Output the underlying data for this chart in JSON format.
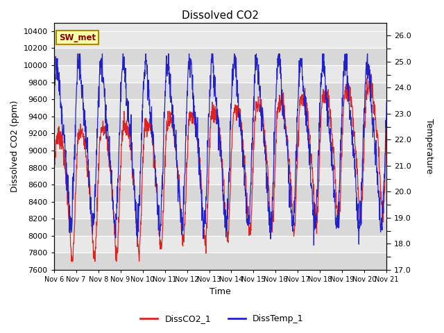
{
  "title": "Dissolved CO2",
  "xlabel": "Time",
  "ylabel_left": "Dissolved CO2 (ppm)",
  "ylabel_right": "Temperature",
  "legend_label": "SW_met",
  "series1_label": "DissCO2_1",
  "series2_label": "DissTemp_1",
  "series1_color": "#dd2222",
  "series2_color": "#2222cc",
  "ylim_left": [
    7600,
    10500
  ],
  "ylim_right": [
    17.0,
    26.5
  ],
  "yticks_left": [
    7600,
    7800,
    8000,
    8200,
    8400,
    8600,
    8800,
    9000,
    9200,
    9400,
    9600,
    9800,
    10000,
    10200,
    10400
  ],
  "yticks_right_major": [
    17.0,
    18.0,
    19.0,
    20.0,
    21.0,
    22.0,
    23.0,
    24.0,
    25.0,
    26.0
  ],
  "yticks_right_minor": [
    17.5,
    18.5,
    19.5,
    20.5,
    21.5,
    22.5,
    23.5,
    24.5,
    25.5
  ],
  "background_color": "#e8e8e8",
  "fig_background": "#ffffff",
  "annotation_box_color": "#ffffaa",
  "annotation_box_edge": "#aa8800",
  "annotation_text_color": "#880000",
  "xtick_labels": [
    "Nov 6",
    "Nov 7",
    "Nov 8",
    "Nov 9",
    "Nov 10",
    "Nov 11",
    "Nov 12",
    "Nov 13",
    "Nov 14",
    "Nov 15",
    "Nov 16",
    "Nov 17",
    "Nov 18",
    "Nov 19",
    "Nov 20",
    "Nov 21"
  ],
  "figsize": [
    6.4,
    4.8
  ],
  "dpi": 100
}
